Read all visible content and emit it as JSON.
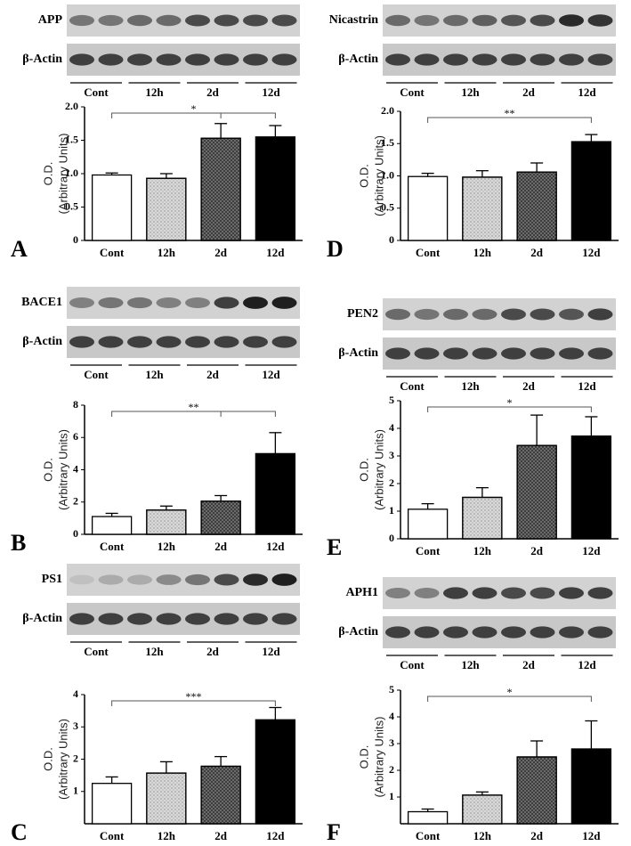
{
  "chart_data": [
    {
      "type": "bar",
      "panel": "A",
      "blot_labels": [
        "APP",
        "β-Actin"
      ],
      "categories": [
        "Cont",
        "12h",
        "2d",
        "12d"
      ],
      "values": [
        0.98,
        0.93,
        1.53,
        1.55
      ],
      "errors": [
        0.03,
        0.07,
        0.22,
        0.17
      ],
      "colors": [
        "#ffffff",
        "#d9d9d9",
        "#7a7a7a",
        "#000000"
      ],
      "y_label": [
        "O.D.",
        "(Arbitrary Units)"
      ],
      "ylim": [
        0,
        2
      ],
      "yticks": [
        0,
        0.5,
        {
          "value": 1,
          "label": "1.0"
        },
        1.5,
        {
          "value": 2,
          "label": "2.0"
        }
      ],
      "significance": "*"
    },
    {
      "type": "bar",
      "panel": "B",
      "blot_labels": [
        "BACE1",
        "β-Actin"
      ],
      "categories": [
        "Cont",
        "12h",
        "2d",
        "12d"
      ],
      "values": [
        1.1,
        1.5,
        2.05,
        5.0
      ],
      "errors": [
        0.2,
        0.25,
        0.35,
        1.3
      ],
      "colors": [
        "#ffffff",
        "#d9d9d9",
        "#7a7a7a",
        "#000000"
      ],
      "y_label": [
        "O.D.",
        "(Arbitrary Units)"
      ],
      "ylim": [
        0,
        8
      ],
      "yticks": [
        0,
        2,
        4,
        6,
        8
      ],
      "significance": "**"
    },
    {
      "type": "bar",
      "panel": "C",
      "blot_labels": [
        "PS1",
        "β-Actin"
      ],
      "categories": [
        "Cont",
        "12h",
        "2d",
        "12d"
      ],
      "values": [
        1.25,
        1.57,
        1.78,
        3.22
      ],
      "errors": [
        0.2,
        0.35,
        0.3,
        0.38
      ],
      "colors": [
        "#ffffff",
        "#d9d9d9",
        "#7a7a7a",
        "#000000"
      ],
      "y_label": [
        "O.D.",
        "(Arbitrary Units)"
      ],
      "ylim": [
        0,
        4
      ],
      "yticks": [
        1,
        2,
        3,
        4
      ],
      "significance": "***"
    },
    {
      "type": "bar",
      "panel": "D",
      "blot_labels": [
        "Nicastrin",
        "β-Actin"
      ],
      "categories": [
        "Cont",
        "12h",
        "2d",
        "12d"
      ],
      "values": [
        0.99,
        0.98,
        1.06,
        1.53
      ],
      "errors": [
        0.05,
        0.1,
        0.14,
        0.11
      ],
      "colors": [
        "#ffffff",
        "#d9d9d9",
        "#7a7a7a",
        "#000000"
      ],
      "y_label": [
        "O.D.",
        "(Arbitrary Units)"
      ],
      "ylim": [
        0,
        2
      ],
      "yticks": [
        0,
        0.5,
        {
          "value": 1,
          "label": "1.0"
        },
        1.5,
        {
          "value": 2,
          "label": "2.0"
        }
      ],
      "significance": "**"
    },
    {
      "type": "bar",
      "panel": "E",
      "blot_labels": [
        "PEN2",
        "β-Actin"
      ],
      "categories": [
        "Cont",
        "12h",
        "2d",
        "12d"
      ],
      "values": [
        1.07,
        1.5,
        3.38,
        3.72
      ],
      "errors": [
        0.2,
        0.35,
        1.1,
        0.7
      ],
      "colors": [
        "#ffffff",
        "#d9d9d9",
        "#7a7a7a",
        "#000000"
      ],
      "y_label": [
        "O.D.",
        "(Arbitrary Units)"
      ],
      "ylim": [
        0,
        5
      ],
      "yticks": [
        0,
        1,
        2,
        3,
        4,
        5
      ],
      "significance": "*"
    },
    {
      "type": "bar",
      "panel": "F",
      "blot_labels": [
        "APH1",
        "β-Actin"
      ],
      "categories": [
        "Cont",
        "12h",
        "2d",
        "12d"
      ],
      "values": [
        0.45,
        1.07,
        2.5,
        2.8
      ],
      "errors": [
        0.1,
        0.12,
        0.6,
        1.05
      ],
      "colors": [
        "#ffffff",
        "#d9d9d9",
        "#7a7a7a",
        "#000000"
      ],
      "y_label": [
        "O.D.",
        "(Arbitrary Units)"
      ],
      "ylim": [
        0,
        5
      ],
      "yticks": [
        1,
        2,
        3,
        4,
        5
      ],
      "significance": "*"
    }
  ]
}
